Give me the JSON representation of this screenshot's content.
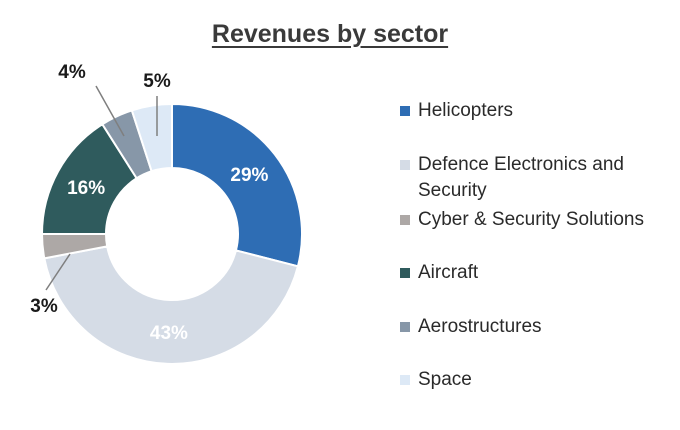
{
  "chart_data": {
    "type": "pie",
    "donut": true,
    "title": "Revenues by sector",
    "categories": [
      "Helicopters",
      "Defence Electronics and Security",
      "Cyber & Security Solutions",
      "Aircraft",
      "Aerostructures",
      "Space"
    ],
    "values": [
      29,
      43,
      3,
      16,
      4,
      5
    ],
    "labels": [
      "29%",
      "43%",
      "3%",
      "16%",
      "4%",
      "5%"
    ],
    "colors": [
      "#2e6db4",
      "#d5dce6",
      "#ada8a6",
      "#2f5b5d",
      "#8797a8",
      "#dde9f6"
    ],
    "legend_position": "right"
  }
}
